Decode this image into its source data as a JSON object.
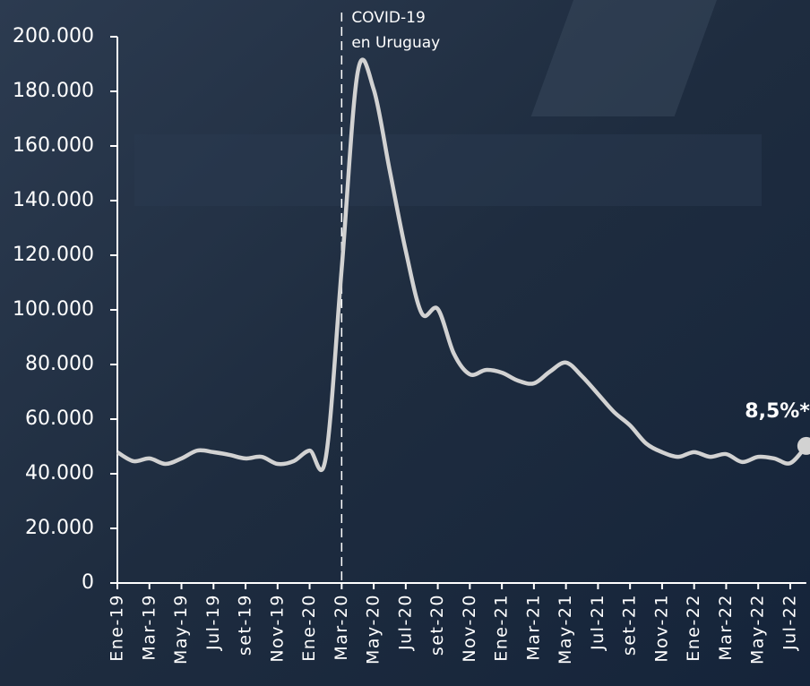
{
  "chart_data": {
    "type": "line",
    "categories": [
      "Ene-19",
      null,
      "Mar-19",
      null,
      "May-19",
      null,
      "Jul-19",
      null,
      "set-19",
      null,
      "Nov-19",
      null,
      "Ene-20",
      null,
      "Mar-20",
      null,
      "May-20",
      null,
      "Jul-20",
      null,
      "set-20",
      null,
      "Nov-20",
      null,
      "Ene-21",
      null,
      "Mar-21",
      null,
      "May-21",
      null,
      "Jul-21",
      null,
      "set-21",
      null,
      "Nov-21",
      null,
      "Ene-22",
      null,
      "Mar-22",
      null,
      "May-22",
      null,
      "Jul-22",
      null
    ],
    "series": [
      {
        "color": "#d2d2d2",
        "values": [
          47900,
          44600,
          45600,
          43600,
          45600,
          48500,
          47900,
          46900,
          45600,
          46200,
          43600,
          44600,
          48500,
          45600,
          115000,
          187000,
          180700,
          151000,
          121600,
          98700,
          100300,
          84000,
          76400,
          78000,
          77000,
          74100,
          73100,
          77400,
          80700,
          75700,
          69200,
          62600,
          57700,
          51100,
          47900,
          46200,
          47900,
          46200,
          47200,
          44300,
          46200,
          45600,
          43900,
          50200
        ]
      }
    ],
    "ylim": [
      0,
      200000
    ],
    "yticks": [
      0,
      {
        "value": 20000,
        "label": "20.000"
      },
      {
        "value": 40000,
        "label": "40.000"
      },
      {
        "value": 60000,
        "label": "60.000"
      },
      {
        "value": 80000,
        "label": "80.000"
      },
      {
        "value": 100000,
        "label": "100.000"
      },
      {
        "value": 120000,
        "label": "120.000"
      },
      {
        "value": 140000,
        "label": "140.000"
      },
      {
        "value": 160000,
        "label": "160.000"
      },
      {
        "value": 180000,
        "label": "180.000"
      },
      {
        "value": 200000,
        "label": "200.000"
      }
    ],
    "event_annotation": [
      "COVID-19",
      "en Uruguay"
    ],
    "end_label": "8,5%*"
  }
}
